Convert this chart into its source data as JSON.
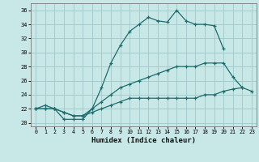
{
  "xlabel": "Humidex (Indice chaleur)",
  "xlim": [
    -0.5,
    23.5
  ],
  "ylim": [
    19.5,
    37.0
  ],
  "yticks": [
    20,
    22,
    24,
    26,
    28,
    30,
    32,
    34,
    36
  ],
  "xticks": [
    0,
    1,
    2,
    3,
    4,
    5,
    6,
    7,
    8,
    9,
    10,
    11,
    12,
    13,
    14,
    15,
    16,
    17,
    18,
    19,
    20,
    21,
    22,
    23
  ],
  "background_color": "#c8e8e8",
  "grid_color": "#a0c8c8",
  "line_color": "#1e6b6b",
  "series": [
    {
      "x": [
        0,
        1,
        2,
        3,
        4,
        5,
        6,
        7,
        8,
        9,
        10,
        11,
        12,
        13,
        14,
        15,
        16,
        17,
        18,
        19,
        20
      ],
      "y": [
        22.0,
        22.5,
        22.0,
        20.5,
        20.5,
        20.5,
        22.0,
        25.0,
        28.5,
        31.0,
        33.0,
        34.0,
        35.0,
        34.5,
        34.3,
        36.0,
        34.5,
        34.0,
        34.0,
        33.8,
        30.5
      ]
    },
    {
      "x": [
        0,
        1,
        2,
        3,
        4,
        5,
        6,
        7,
        8,
        9,
        10,
        11,
        12,
        13,
        14,
        15,
        16,
        17,
        18,
        19,
        20,
        21,
        22
      ],
      "y": [
        22.0,
        22.0,
        22.0,
        21.5,
        21.0,
        21.0,
        22.0,
        23.0,
        24.0,
        25.0,
        25.5,
        26.0,
        26.5,
        27.0,
        27.5,
        28.0,
        28.0,
        28.0,
        28.5,
        28.5,
        28.5,
        26.5,
        25.0
      ]
    },
    {
      "x": [
        0,
        1,
        2,
        3,
        4,
        5,
        6,
        7,
        8,
        9,
        10,
        11,
        12,
        13,
        14,
        15,
        16,
        17,
        18,
        19,
        20,
        21,
        22,
        23
      ],
      "y": [
        22.0,
        22.0,
        22.0,
        21.5,
        21.0,
        21.0,
        21.5,
        22.0,
        22.5,
        23.0,
        23.5,
        23.5,
        23.5,
        23.5,
        23.5,
        23.5,
        23.5,
        23.5,
        24.0,
        24.0,
        24.5,
        24.8,
        25.0,
        24.5
      ]
    }
  ]
}
